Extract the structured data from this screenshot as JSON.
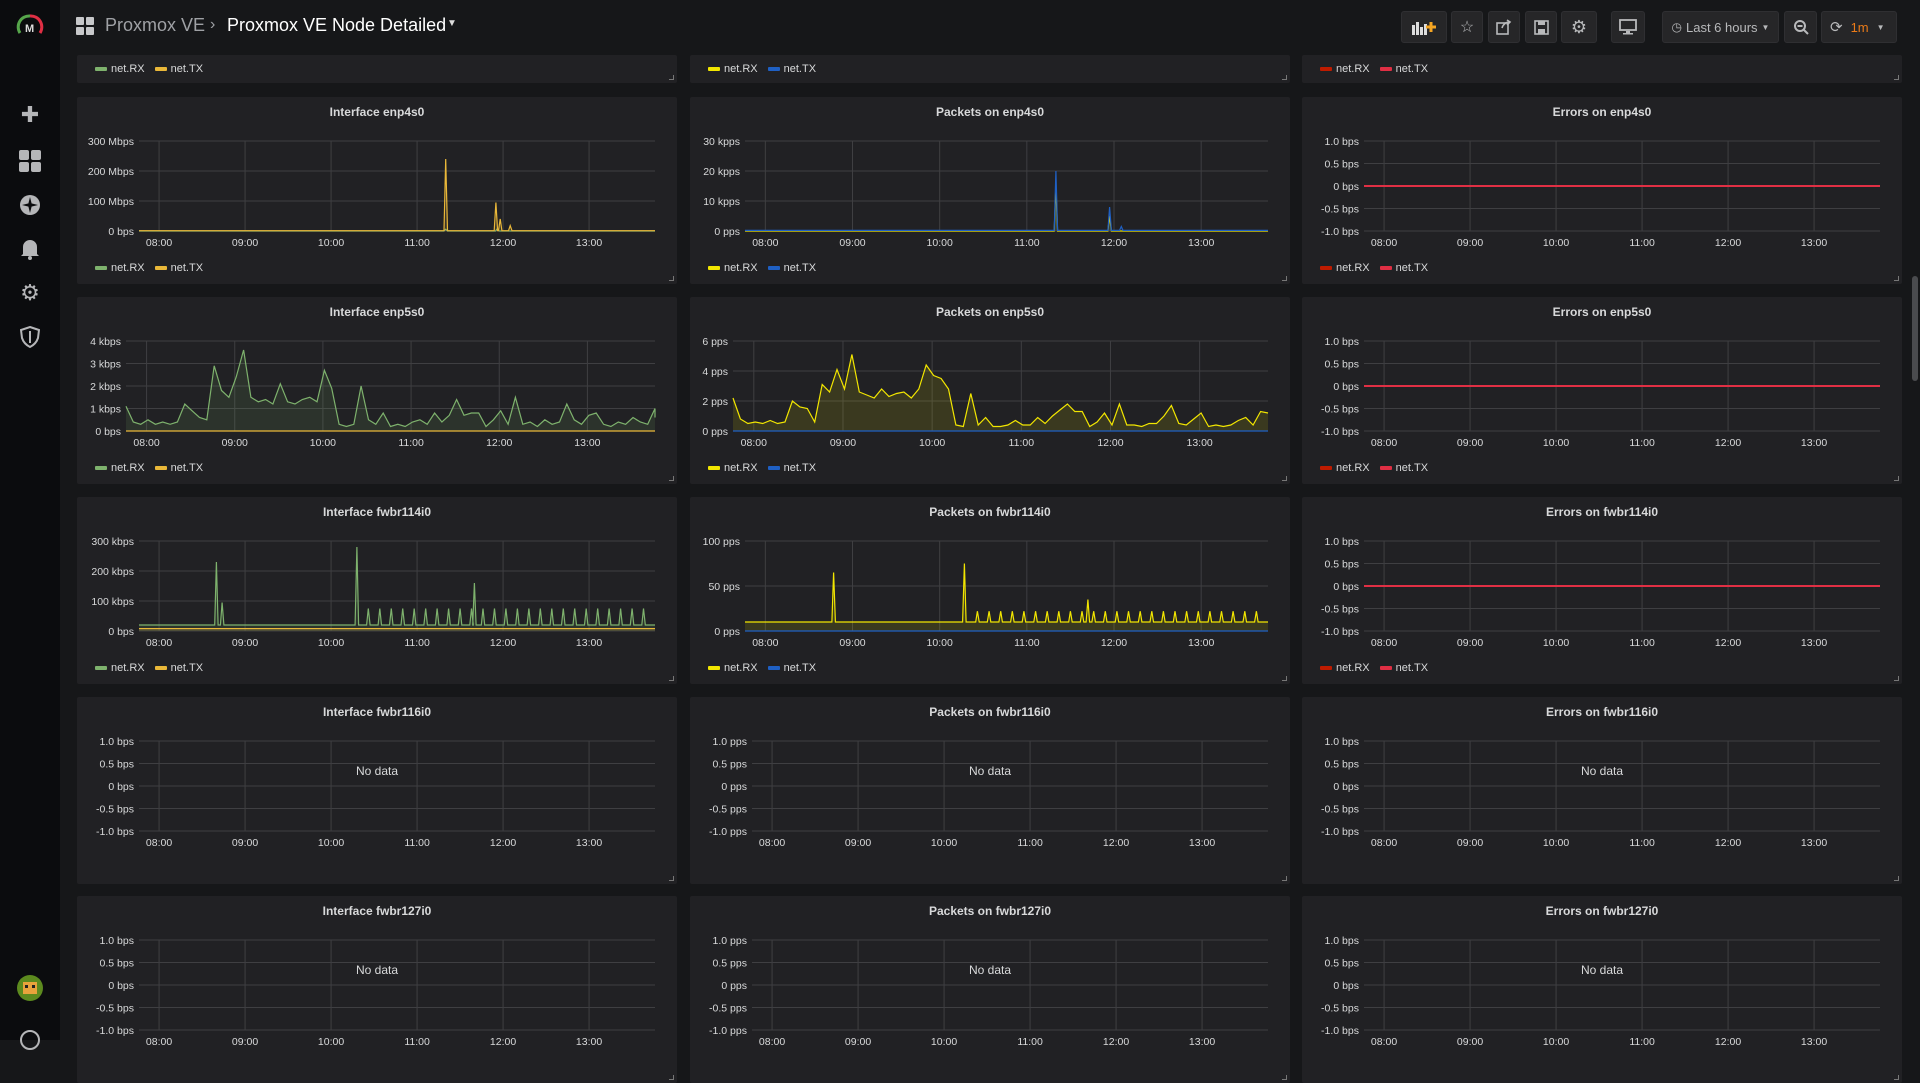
{
  "topbar": {
    "parent": "Proxmox VE",
    "title": "Proxmox VE Node Detailed",
    "time_range": "Last 6 hours",
    "refresh_interval": "1m",
    "refresh_color": "#eb7b18"
  },
  "sidebar": {
    "items": [
      "create",
      "dashboards",
      "explore",
      "alerting",
      "configuration",
      "server-admin"
    ]
  },
  "time": {
    "start": "07:46",
    "end": "13:46",
    "ticks": [
      "08:00",
      "09:00",
      "10:00",
      "11:00",
      "12:00",
      "13:00"
    ]
  },
  "colors": {
    "rx_green": "#7eb26d",
    "tx_orange": "#eab839",
    "rx_yellow": "#f2e600",
    "tx_blue": "#1f60c4",
    "err_rx": "#bf1b00",
    "err_tx": "#e02f44"
  },
  "partial_row": [
    {
      "legend": [
        {
          "name": "net.RX",
          "color": "#7eb26d"
        },
        {
          "name": "net.TX",
          "color": "#eab839"
        }
      ]
    },
    {
      "legend": [
        {
          "name": "net.RX",
          "color": "#f2e600"
        },
        {
          "name": "net.TX",
          "color": "#1f60c4"
        }
      ]
    },
    {
      "legend": [
        {
          "name": "net.RX",
          "color": "#bf1b00"
        },
        {
          "name": "net.TX",
          "color": "#e02f44"
        }
      ]
    }
  ],
  "rows": [
    [
      {
        "title": "Interface enp4s0",
        "y": {
          "min": 0,
          "max": 300,
          "labels": [
            "300 Mbps",
            "200 Mbps",
            "100 Mbps",
            "0 bps"
          ]
        },
        "series": [
          {
            "name": "net.RX",
            "color": "#7eb26d",
            "baseline": 0,
            "spikes": [
              [
                "11:20",
                6
              ],
              [
                "11:56",
                8
              ]
            ]
          },
          {
            "name": "net.TX",
            "color": "#eab839",
            "baseline": 1,
            "spikes": [
              [
                "11:20",
                240
              ],
              [
                "11:55",
                95
              ],
              [
                "11:58",
                40
              ],
              [
                "12:05",
                18
              ]
            ]
          }
        ]
      },
      {
        "title": "Packets on enp4s0",
        "y": {
          "min": 0,
          "max": 30,
          "labels": [
            "30 kpps",
            "20 kpps",
            "10 kpps",
            "0 pps"
          ]
        },
        "series": [
          {
            "name": "net.RX",
            "color": "#f2e600",
            "baseline": 0,
            "spikes": [
              [
                "11:20",
                15
              ],
              [
                "11:57",
                5
              ]
            ]
          },
          {
            "name": "net.TX",
            "color": "#1f60c4",
            "baseline": 0.2,
            "spikes": [
              [
                "11:20",
                20
              ],
              [
                "11:57",
                8
              ],
              [
                "12:05",
                1.5
              ]
            ]
          }
        ]
      },
      {
        "title": "Errors on enp4s0",
        "y": {
          "min": -1,
          "max": 1,
          "labels": [
            "1.0 bps",
            "0.5 bps",
            "0 bps",
            "-0.5 bps",
            "-1.0 bps"
          ]
        },
        "series": [
          {
            "name": "net.RX",
            "color": "#bf1b00",
            "baseline": 0
          },
          {
            "name": "net.TX",
            "color": "#e02f44",
            "baseline": 0
          }
        ]
      }
    ],
    [
      {
        "title": "Interface enp5s0",
        "y": {
          "min": 0,
          "max": 4,
          "labels": [
            "4 kbps",
            "3 kbps",
            "2 kbps",
            "1 kbps",
            "0 bps"
          ]
        },
        "series": [
          {
            "name": "net.RX",
            "color": "#7eb26d",
            "interval_min": 5,
            "values": [
              1.1,
              0.4,
              0.3,
              0.5,
              0.3,
              0.4,
              0.3,
              0.4,
              1.2,
              0.9,
              0.6,
              0.5,
              2.9,
              1.8,
              1.5,
              2.4,
              3.6,
              1.5,
              1.3,
              1.4,
              1.2,
              2.1,
              1.3,
              1.2,
              1.4,
              1.5,
              1.3,
              2.7,
              1.9,
              0.3,
              0.2,
              0.3,
              2.0,
              0.5,
              0.3,
              0.8,
              0.2,
              0.3,
              0.2,
              0.4,
              0.5,
              0.3,
              0.8,
              0.4,
              0.7,
              1.4,
              0.7,
              0.8,
              0.8,
              0.2,
              0.5,
              0.9,
              0.3,
              1.5,
              0.3,
              0.4,
              0.2,
              0.5,
              0.3,
              0.4,
              1.2,
              0.5,
              0.3,
              0.7,
              0.8,
              0.3,
              0.2,
              0.4,
              0.3,
              0.6,
              0.4,
              0.3,
              1.0,
              0.6
            ]
          },
          {
            "name": "net.TX",
            "color": "#eab839",
            "baseline": 0
          }
        ]
      },
      {
        "title": "Packets on enp5s0",
        "y": {
          "min": 0,
          "max": 6,
          "labels": [
            "6 pps",
            "4 pps",
            "2 pps",
            "0 pps"
          ]
        },
        "series": [
          {
            "name": "net.RX",
            "color": "#f2e600",
            "interval_min": 5,
            "values": [
              2.2,
              0.8,
              0.5,
              0.6,
              0.5,
              0.7,
              0.5,
              0.6,
              2.0,
              1.6,
              1.5,
              0.6,
              3.1,
              2.6,
              4.1,
              2.8,
              5.1,
              2.6,
              2.4,
              2.2,
              2.8,
              2.3,
              2.5,
              2.6,
              2.2,
              2.8,
              4.4,
              3.7,
              3.5,
              2.8,
              0.4,
              0.3,
              2.5,
              0.4,
              0.9,
              0.3,
              0.3,
              0.4,
              0.7,
              0.4,
              0.4,
              0.9,
              0.5,
              1.0,
              1.4,
              1.8,
              1.3,
              1.3,
              0.3,
              0.6,
              1.2,
              0.4,
              1.8,
              0.4,
              0.4,
              0.3,
              0.5,
              0.5,
              1.0,
              1.7,
              0.5,
              0.4,
              0.8,
              1.2,
              0.3,
              0.4,
              0.3,
              0.4,
              0.7,
              0.9,
              0.4,
              1.3,
              1.2
            ]
          },
          {
            "name": "net.TX",
            "color": "#1f60c4",
            "baseline": 0
          }
        ]
      },
      {
        "title": "Errors on enp5s0",
        "y": {
          "min": -1,
          "max": 1,
          "labels": [
            "1.0 bps",
            "0.5 bps",
            "0 bps",
            "-0.5 bps",
            "-1.0 bps"
          ]
        },
        "series": [
          {
            "name": "net.RX",
            "color": "#bf1b00",
            "baseline": 0
          },
          {
            "name": "net.TX",
            "color": "#e02f44",
            "baseline": 0
          }
        ]
      }
    ],
    [
      {
        "title": "Interface fwbr114i0",
        "y": {
          "min": 0,
          "max": 300,
          "labels": [
            "300 kbps",
            "200 kbps",
            "100 kbps",
            "0 bps"
          ]
        },
        "series": [
          {
            "name": "net.RX",
            "color": "#7eb26d",
            "baseline": 20,
            "spikes": [
              [
                "08:40",
                230
              ],
              [
                "08:44",
                95
              ],
              [
                "10:18",
                280
              ],
              [
                "11:40",
                160
              ]
            ],
            "periodic": {
              "from": "10:26",
              "to": "13:45",
              "every_min": 8,
              "value": 75
            }
          },
          {
            "name": "net.TX",
            "color": "#eab839",
            "baseline": 8
          }
        ]
      },
      {
        "title": "Packets on fwbr114i0",
        "y": {
          "min": 0,
          "max": 100,
          "labels": [
            "100 pps",
            "50 pps",
            "0 pps"
          ]
        },
        "series": [
          {
            "name": "net.RX",
            "color": "#f2e600",
            "baseline": 10,
            "spikes": [
              [
                "08:47",
                65
              ],
              [
                "10:17",
                75
              ],
              [
                "11:42",
                35
              ]
            ],
            "periodic": {
              "from": "10:26",
              "to": "13:45",
              "every_min": 8,
              "value": 22
            }
          },
          {
            "name": "net.TX",
            "color": "#1f60c4",
            "baseline": 0
          }
        ]
      },
      {
        "title": "Errors on fwbr114i0",
        "y": {
          "min": -1,
          "max": 1,
          "labels": [
            "1.0 bps",
            "0.5 bps",
            "0 bps",
            "-0.5 bps",
            "-1.0 bps"
          ]
        },
        "series": [
          {
            "name": "net.RX",
            "color": "#bf1b00",
            "baseline": 0
          },
          {
            "name": "net.TX",
            "color": "#e02f44",
            "baseline": 0
          }
        ]
      }
    ],
    [
      {
        "title": "Interface fwbr116i0",
        "no_data": "No data",
        "y": {
          "min": -1,
          "max": 1,
          "labels": [
            "1.0 bps",
            "0.5 bps",
            "0 bps",
            "-0.5 bps",
            "-1.0 bps"
          ]
        },
        "series": []
      },
      {
        "title": "Packets on fwbr116i0",
        "no_data": "No data",
        "y": {
          "min": -1,
          "max": 1,
          "labels": [
            "1.0 pps",
            "0.5 pps",
            "0 pps",
            "-0.5 pps",
            "-1.0 pps"
          ]
        },
        "series": []
      },
      {
        "title": "Errors on fwbr116i0",
        "no_data": "No data",
        "y": {
          "min": -1,
          "max": 1,
          "labels": [
            "1.0 bps",
            "0.5 bps",
            "0 bps",
            "-0.5 bps",
            "-1.0 bps"
          ]
        },
        "series": []
      }
    ],
    [
      {
        "title": "Interface fwbr127i0",
        "no_data": "No data",
        "y": {
          "min": -1,
          "max": 1,
          "labels": [
            "1.0 bps",
            "0.5 bps",
            "0 bps",
            "-0.5 bps",
            "-1.0 bps"
          ]
        },
        "series": []
      },
      {
        "title": "Packets on fwbr127i0",
        "no_data": "No data",
        "y": {
          "min": -1,
          "max": 1,
          "labels": [
            "1.0 pps",
            "0.5 pps",
            "0 pps",
            "-0.5 pps",
            "-1.0 pps"
          ]
        },
        "series": []
      },
      {
        "title": "Errors on fwbr127i0",
        "no_data": "No data",
        "y": {
          "min": -1,
          "max": 1,
          "labels": [
            "1.0 bps",
            "0.5 bps",
            "0 bps",
            "-0.5 bps",
            "-1.0 bps"
          ]
        },
        "series": []
      }
    ]
  ]
}
